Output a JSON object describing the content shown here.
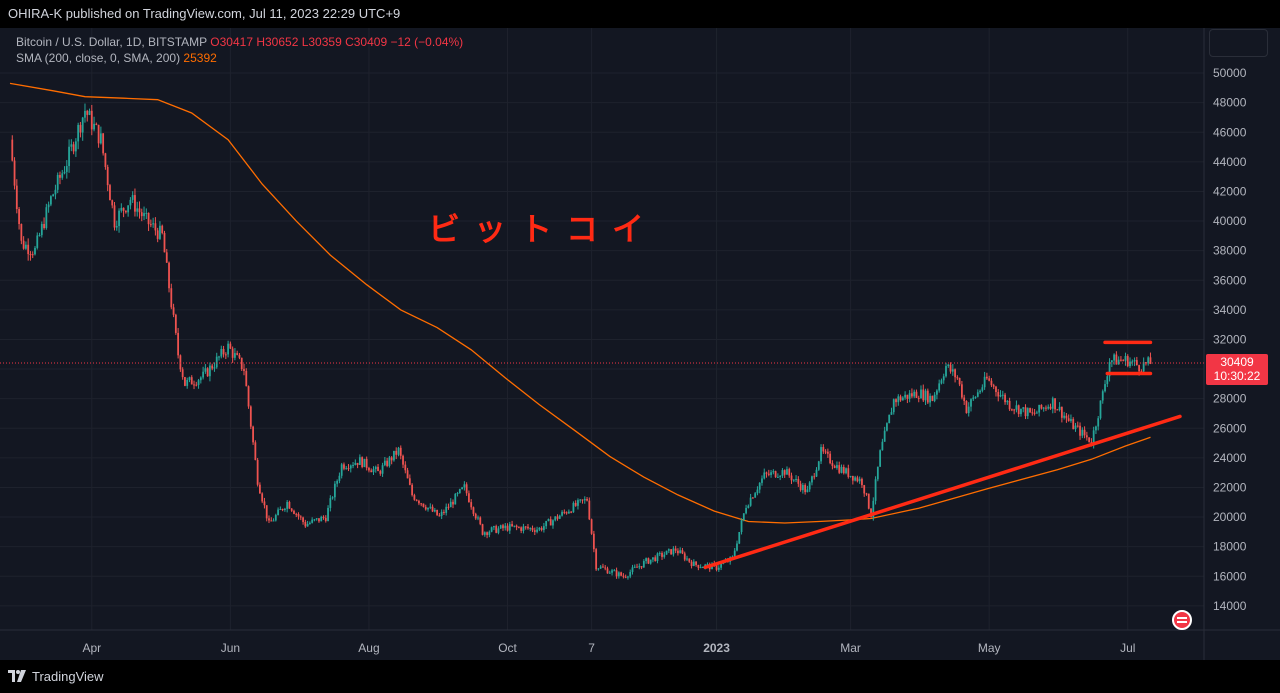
{
  "header": {
    "publish_line": "OHIRA-K published on TradingView.com, Jul 11, 2023 22:29 UTC+9"
  },
  "legend": {
    "symbol": "Bitcoin / U.S. Dollar, 1D, BITSTAMP",
    "ohlc": "O30417 H30652 L30359 C30409 −12 (−0.04%)",
    "sma_label": "SMA (200, close, 0, SMA, 200)",
    "sma_value": "25392"
  },
  "annotation": "ビットコイ",
  "price_label": {
    "price": "30409",
    "countdown": "10:30:22"
  },
  "footer": {
    "brand": "TradingView"
  },
  "colors": {
    "up": "#26a69a",
    "down": "#ef5350",
    "sma": "#ff6d00",
    "drawings": "#ff2a14",
    "background": "#131722"
  },
  "chart_data": {
    "type": "candlestick",
    "title": "Bitcoin / U.S. Dollar, 1D, BITSTAMP",
    "ylim": [
      12000,
      52000
    ],
    "y_ticks": [
      14000,
      16000,
      18000,
      20000,
      22000,
      24000,
      26000,
      28000,
      30000,
      32000,
      34000,
      36000,
      38000,
      40000,
      42000,
      44000,
      46000,
      48000,
      50000
    ],
    "x_ticks": [
      {
        "label": "Apr",
        "date": "2022-04-01"
      },
      {
        "label": "Jun",
        "date": "2022-06-01"
      },
      {
        "label": "Aug",
        "date": "2022-08-01"
      },
      {
        "label": "Oct",
        "date": "2022-10-01"
      },
      {
        "label": "7",
        "date": "2022-11-07"
      },
      {
        "label": "2023",
        "date": "2023-01-01"
      },
      {
        "label": "Mar",
        "date": "2023-03-01"
      },
      {
        "label": "May",
        "date": "2023-05-01"
      },
      {
        "label": "Jul",
        "date": "2023-07-01"
      }
    ],
    "x_range": [
      "2022-02-24",
      "2023-07-24"
    ],
    "grid": true,
    "price_path": [
      [
        "2022-02-24",
        45500
      ],
      [
        "2022-03-01",
        38500
      ],
      [
        "2022-03-07",
        38000
      ],
      [
        "2022-03-14",
        41500
      ],
      [
        "2022-03-21",
        44000
      ],
      [
        "2022-03-29",
        47500
      ],
      [
        "2022-04-05",
        45500
      ],
      [
        "2022-04-11",
        40000
      ],
      [
        "2022-04-18",
        41500
      ],
      [
        "2022-04-25",
        40000
      ],
      [
        "2022-05-02",
        39000
      ],
      [
        "2022-05-09",
        31000
      ],
      [
        "2022-05-12",
        29000
      ],
      [
        "2022-05-20",
        29500
      ],
      [
        "2022-05-31",
        31500
      ],
      [
        "2022-06-07",
        30000
      ],
      [
        "2022-06-13",
        22500
      ],
      [
        "2022-06-18",
        19500
      ],
      [
        "2022-06-26",
        21000
      ],
      [
        "2022-07-04",
        19500
      ],
      [
        "2022-07-13",
        20000
      ],
      [
        "2022-07-20",
        23500
      ],
      [
        "2022-07-28",
        23800
      ],
      [
        "2022-08-05",
        23000
      ],
      [
        "2022-08-14",
        24500
      ],
      [
        "2022-08-20",
        21500
      ],
      [
        "2022-09-01",
        20000
      ],
      [
        "2022-09-12",
        22000
      ],
      [
        "2022-09-20",
        19000
      ],
      [
        "2022-10-01",
        19300
      ],
      [
        "2022-10-15",
        19200
      ],
      [
        "2022-10-29",
        20600
      ],
      [
        "2022-11-05",
        21200
      ],
      [
        "2022-11-09",
        16700
      ],
      [
        "2022-11-21",
        16000
      ],
      [
        "2022-12-01",
        17000
      ],
      [
        "2022-12-14",
        17800
      ],
      [
        "2022-12-22",
        16800
      ],
      [
        "2023-01-01",
        16600
      ],
      [
        "2023-01-08",
        17200
      ],
      [
        "2023-01-14",
        20800
      ],
      [
        "2023-01-22",
        22800
      ],
      [
        "2023-01-31",
        23100
      ],
      [
        "2023-02-10",
        21700
      ],
      [
        "2023-02-16",
        24400
      ],
      [
        "2023-02-24",
        23300
      ],
      [
        "2023-03-06",
        22400
      ],
      [
        "2023-03-10",
        20200
      ],
      [
        "2023-03-14",
        24300
      ],
      [
        "2023-03-20",
        27900
      ],
      [
        "2023-03-31",
        28400
      ],
      [
        "2023-04-06",
        28000
      ],
      [
        "2023-04-12",
        30200
      ],
      [
        "2023-04-17",
        29400
      ],
      [
        "2023-04-21",
        27300
      ],
      [
        "2023-04-30",
        29300
      ],
      [
        "2023-05-10",
        27600
      ],
      [
        "2023-05-20",
        26900
      ],
      [
        "2023-05-29",
        27800
      ],
      [
        "2023-06-06",
        26300
      ],
      [
        "2023-06-15",
        25100
      ],
      [
        "2023-06-20",
        28300
      ],
      [
        "2023-06-23",
        30600
      ],
      [
        "2023-07-01",
        30600
      ],
      [
        "2023-07-06",
        30200
      ],
      [
        "2023-07-11",
        30409
      ]
    ],
    "sma": {
      "name": "SMA (200, close, 0, SMA, 200)",
      "path": [
        [
          "2022-02-24",
          49300
        ],
        [
          "2022-03-15",
          48800
        ],
        [
          "2022-03-29",
          48400
        ],
        [
          "2022-04-15",
          48300
        ],
        [
          "2022-04-30",
          48200
        ],
        [
          "2022-05-15",
          47300
        ],
        [
          "2022-05-31",
          45500
        ],
        [
          "2022-06-15",
          42500
        ],
        [
          "2022-06-30",
          40000
        ],
        [
          "2022-07-15",
          37700
        ],
        [
          "2022-07-31",
          35700
        ],
        [
          "2022-08-15",
          34000
        ],
        [
          "2022-08-31",
          32800
        ],
        [
          "2022-09-15",
          31300
        ],
        [
          "2022-09-30",
          29400
        ],
        [
          "2022-10-15",
          27600
        ],
        [
          "2022-10-31",
          25800
        ],
        [
          "2022-11-15",
          24100
        ],
        [
          "2022-11-30",
          22700
        ],
        [
          "2022-12-15",
          21500
        ],
        [
          "2022-12-31",
          20400
        ],
        [
          "2023-01-15",
          19700
        ],
        [
          "2023-01-31",
          19600
        ],
        [
          "2023-02-15",
          19700
        ],
        [
          "2023-02-28",
          19800
        ],
        [
          "2023-03-10",
          19900
        ],
        [
          "2023-03-31",
          20600
        ],
        [
          "2023-04-30",
          21900
        ],
        [
          "2023-05-31",
          23200
        ],
        [
          "2023-06-15",
          23900
        ],
        [
          "2023-06-30",
          24800
        ],
        [
          "2023-07-11",
          25392
        ]
      ]
    },
    "current_price": 30409,
    "drawings": [
      {
        "kind": "trendline",
        "from": [
          "2022-12-27",
          16600
        ],
        "to": [
          "2023-07-24",
          26800
        ],
        "width": "thick"
      },
      {
        "kind": "trendline",
        "from": [
          "2023-06-21",
          31800
        ],
        "to": [
          "2023-07-11",
          31800
        ],
        "width": "thick"
      },
      {
        "kind": "trendline",
        "from": [
          "2023-06-22",
          29700
        ],
        "to": [
          "2023-07-11",
          29700
        ],
        "width": "thick"
      }
    ]
  }
}
